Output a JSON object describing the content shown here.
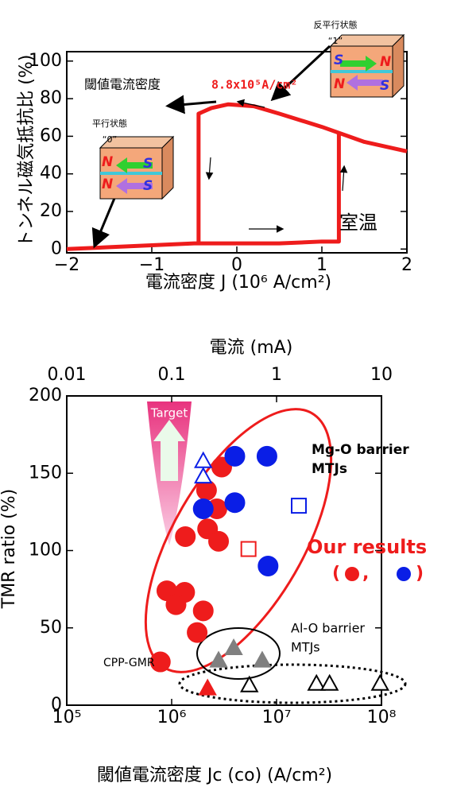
{
  "chart_data": [
    {
      "type": "line",
      "y_label": "トンネル磁気抵抗比 (%)",
      "x_label": "電流密度 J (10⁶ A/cm²)",
      "xlim": [
        -2,
        2
      ],
      "ylim": [
        -2,
        105
      ],
      "xticks": [
        {
          "value": -2,
          "label": "−2"
        },
        {
          "value": -1,
          "label": "−1"
        },
        0,
        1,
        2
      ],
      "yticks": [
        0,
        20,
        40,
        60,
        80,
        100
      ],
      "series": [
        {
          "color": "#ee1c1c",
          "x": [
            -2,
            -1.5,
            -1,
            -0.5,
            0,
            0.5,
            1,
            1.2,
            1.2
          ],
          "values": [
            0,
            1,
            2,
            3,
            3,
            3,
            4,
            4,
            62
          ]
        },
        {
          "color": "#ee1c1c",
          "x": [
            -0.45,
            -0.45,
            -0.3,
            -0.1,
            0.2,
            0.5,
            1,
            1.5,
            2
          ],
          "values": [
            3,
            72,
            75,
            77,
            76,
            72,
            65,
            57,
            52
          ]
        }
      ],
      "annotations": [
        "閾値電流密度",
        "8.8x10⁵A/cm²",
        "反平行状態",
        "“1”",
        "平行状態",
        "“0”",
        "室温",
        "S",
        "N",
        "N",
        "S",
        "N",
        "S",
        "N",
        "S"
      ]
    },
    {
      "type": "scatter",
      "y_label": "TMR ratio (%)",
      "x_label": "閾値電流密度 Jc (co) (A/cm²)",
      "x2_label": "電流 (mA)",
      "xscale": "log",
      "xlim": [
        100000,
        100000000
      ],
      "xticks": [
        {
          "value": 100000,
          "label": "10⁵"
        },
        {
          "value": 1000000,
          "label": "10⁶"
        },
        {
          "value": 10000000,
          "label": "10⁷"
        },
        {
          "value": 100000000,
          "label": "10⁸"
        }
      ],
      "x2lim": [
        0.01,
        10
      ],
      "x2ticks": [
        0.01,
        0.1,
        1,
        10
      ],
      "ylim": [
        0,
        200
      ],
      "yticks": [
        0,
        50,
        100,
        150,
        200
      ],
      "series": [
        {
          "color": "#ee1c1c",
          "marker": "circle",
          "filled": true,
          "x": [
            3000000,
            2150000,
            2700000,
            2200000,
            2800000,
            1350000,
            900000,
            1330000,
            1100000,
            2000000,
            1750000,
            780000
          ],
          "values": [
            154,
            139,
            127,
            114,
            106,
            109,
            74,
            73,
            65,
            61,
            47,
            28
          ]
        },
        {
          "color": "#0a1ee6",
          "marker": "circle",
          "filled": true,
          "x": [
            2000000,
            4000000,
            8100000,
            4000000,
            8300000
          ],
          "values": [
            127,
            161,
            161,
            131,
            90
          ]
        },
        {
          "color": "#0a1ee6",
          "marker": "triangle",
          "filled": false,
          "x": [
            2000000,
            2000000
          ],
          "values": [
            158,
            148
          ]
        },
        {
          "color": "#0a1ee6",
          "marker": "square",
          "filled": false,
          "x": [
            16300000
          ],
          "values": [
            129
          ]
        },
        {
          "color": "#ee1c1c",
          "marker": "square",
          "filled": false,
          "x": [
            5400000
          ],
          "values": [
            101
          ]
        },
        {
          "color": "#808080",
          "marker": "triangle",
          "filled": true,
          "x": [
            2800000,
            3900000,
            7300000
          ],
          "values": [
            29,
            37,
            29
          ]
        },
        {
          "color": "#ee1c1c",
          "marker": "triangle",
          "filled": true,
          "x": [
            2200000
          ],
          "values": [
            11
          ]
        },
        {
          "color": "#000000",
          "marker": "triangle",
          "filled": false,
          "x": [
            5500000,
            24000000,
            32000000,
            97000000
          ],
          "values": [
            13,
            14,
            14,
            14
          ]
        }
      ],
      "annotations": [
        "Target",
        "Mg-O barrier",
        "MTJs",
        "Our results",
        "(",
        ",",
        ")",
        "Al-O barrier",
        "MTJs",
        "CPP-GMR"
      ]
    }
  ]
}
